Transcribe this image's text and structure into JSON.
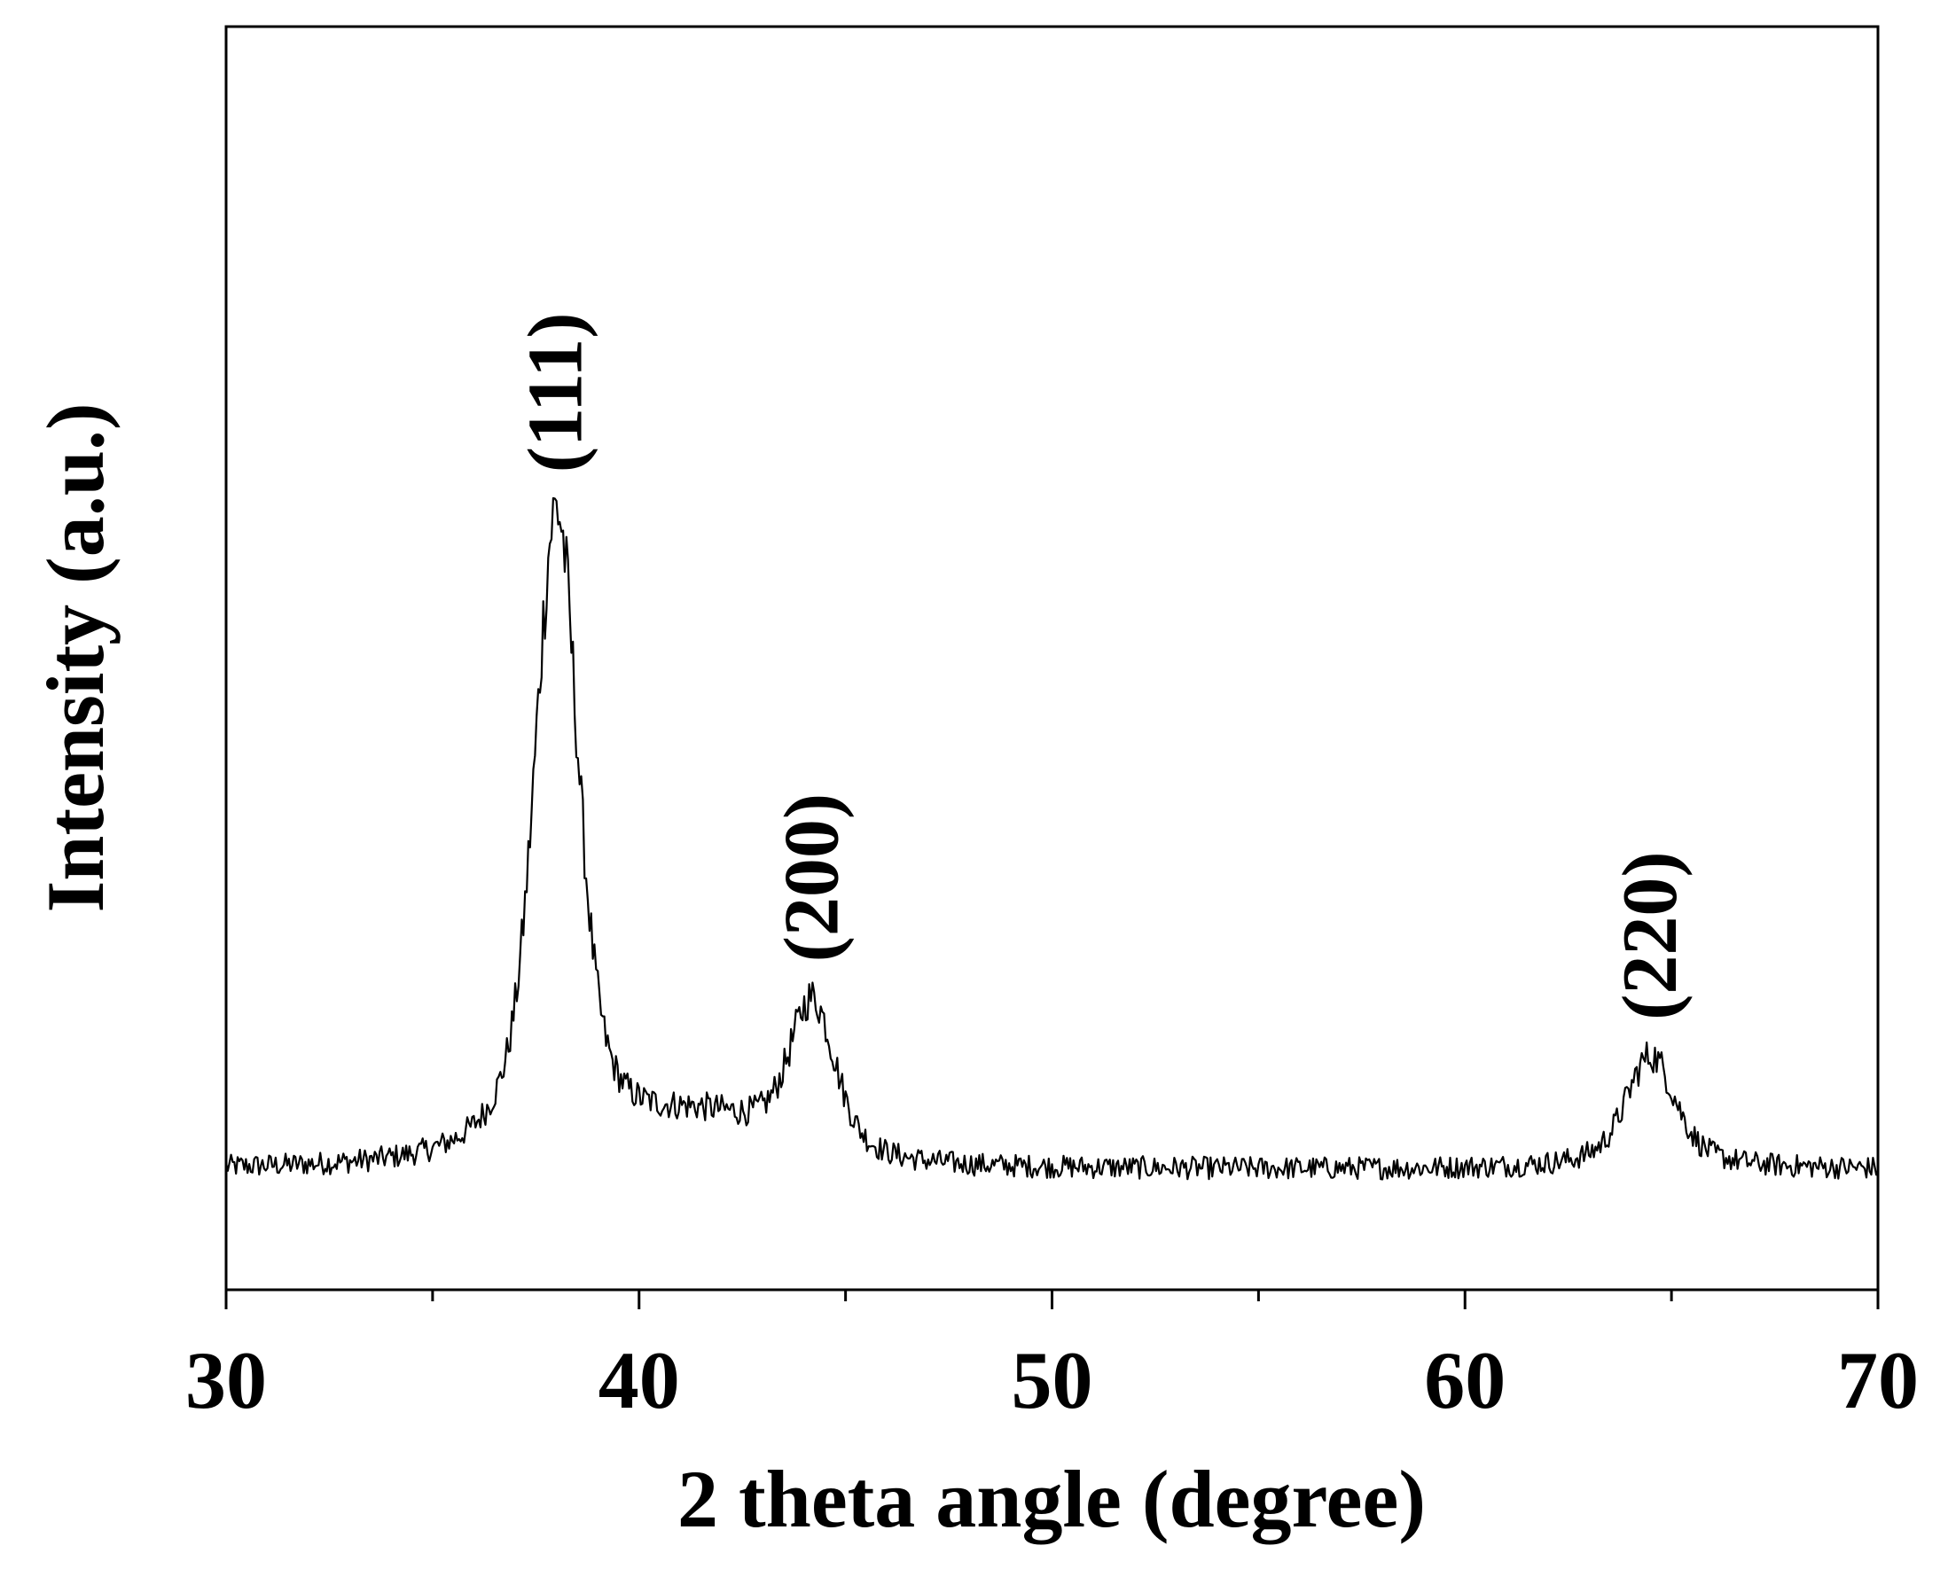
{
  "chart_data": {
    "type": "line",
    "title": "",
    "xlabel": "2 theta angle (degree)",
    "ylabel": "Intensity (a.u.)",
    "xlim": [
      30,
      70
    ],
    "ylim": [
      0,
      100
    ],
    "x_ticks": [
      30,
      40,
      50,
      60,
      70
    ],
    "x_minor_ticks": [
      35,
      45,
      55,
      65
    ],
    "y_ticks_shown": false,
    "grid": false,
    "legend": "none",
    "line_color": "#000000",
    "baseline": 9.5,
    "noise_amplitude": 0.9,
    "series": [
      {
        "peaks": [
          {
            "label": "(111)",
            "center": 38.0,
            "height": 52,
            "width": 0.75
          },
          {
            "label": "(200)",
            "center": 44.2,
            "height": 12.5,
            "width": 0.8
          },
          {
            "label": "(220)",
            "center": 64.5,
            "height": 9.0,
            "width": 0.85
          }
        ],
        "profile_points": [
          {
            "x": 30.0,
            "y": 10.2
          },
          {
            "x": 33.0,
            "y": 9.8
          },
          {
            "x": 35.0,
            "y": 11.0
          },
          {
            "x": 36.0,
            "y": 14.0
          },
          {
            "x": 37.0,
            "y": 24.0
          },
          {
            "x": 38.0,
            "y": 61.5
          },
          {
            "x": 39.0,
            "y": 33.0
          },
          {
            "x": 40.0,
            "y": 20.5
          },
          {
            "x": 41.0,
            "y": 17.5
          },
          {
            "x": 42.0,
            "y": 15.5
          },
          {
            "x": 43.0,
            "y": 15.0
          },
          {
            "x": 44.2,
            "y": 22.5
          },
          {
            "x": 45.5,
            "y": 13.0
          },
          {
            "x": 46.0,
            "y": 11.0
          },
          {
            "x": 50.0,
            "y": 9.8
          },
          {
            "x": 60.0,
            "y": 9.8
          },
          {
            "x": 63.0,
            "y": 11.5
          },
          {
            "x": 64.5,
            "y": 19.0
          },
          {
            "x": 66.0,
            "y": 13.0
          },
          {
            "x": 67.0,
            "y": 10.3
          },
          {
            "x": 70.0,
            "y": 10.0
          }
        ]
      }
    ]
  }
}
